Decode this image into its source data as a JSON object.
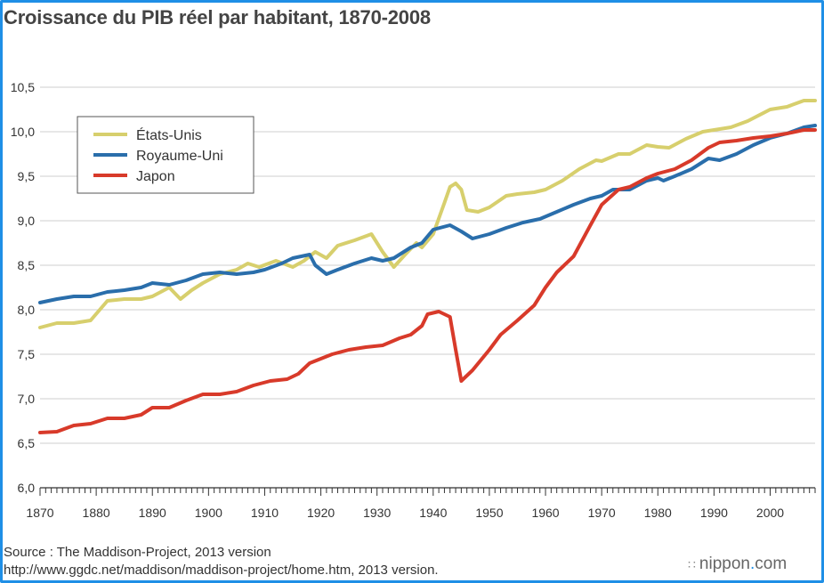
{
  "chart_data": {
    "type": "line",
    "title": "Croissance du PIB réel par habitant, 1870-2008",
    "xlim": [
      1870,
      2008
    ],
    "ylim": [
      6.0,
      10.5
    ],
    "xticks": [
      1870,
      1880,
      1890,
      1900,
      1910,
      1920,
      1930,
      1940,
      1950,
      1960,
      1970,
      1980,
      1990,
      2000
    ],
    "yticks": [
      6.0,
      6.5,
      7.0,
      7.5,
      8.0,
      8.5,
      9.0,
      9.5,
      10.0,
      10.5
    ],
    "ytick_labels": [
      "6,0",
      "6,5",
      "7,0",
      "7,5",
      "8,0",
      "8,5",
      "9,0",
      "9,5",
      "10,0",
      "10,5"
    ],
    "grid": "horizontal",
    "legend_position": "top-left",
    "series": [
      {
        "name": "États-Unis",
        "color": "#d7cf6d",
        "points": [
          [
            1870,
            7.8
          ],
          [
            1873,
            7.85
          ],
          [
            1876,
            7.85
          ],
          [
            1879,
            7.88
          ],
          [
            1882,
            8.1
          ],
          [
            1885,
            8.12
          ],
          [
            1888,
            8.12
          ],
          [
            1890,
            8.15
          ],
          [
            1893,
            8.25
          ],
          [
            1895,
            8.12
          ],
          [
            1897,
            8.22
          ],
          [
            1899,
            8.3
          ],
          [
            1902,
            8.4
          ],
          [
            1905,
            8.45
          ],
          [
            1907,
            8.52
          ],
          [
            1909,
            8.48
          ],
          [
            1912,
            8.55
          ],
          [
            1915,
            8.48
          ],
          [
            1917,
            8.55
          ],
          [
            1919,
            8.65
          ],
          [
            1921,
            8.58
          ],
          [
            1923,
            8.72
          ],
          [
            1926,
            8.78
          ],
          [
            1929,
            8.85
          ],
          [
            1931,
            8.65
          ],
          [
            1933,
            8.48
          ],
          [
            1935,
            8.62
          ],
          [
            1937,
            8.75
          ],
          [
            1938,
            8.7
          ],
          [
            1940,
            8.85
          ],
          [
            1942,
            9.2
          ],
          [
            1943,
            9.38
          ],
          [
            1944,
            9.42
          ],
          [
            1945,
            9.35
          ],
          [
            1946,
            9.12
          ],
          [
            1948,
            9.1
          ],
          [
            1950,
            9.15
          ],
          [
            1953,
            9.28
          ],
          [
            1955,
            9.3
          ],
          [
            1958,
            9.32
          ],
          [
            1960,
            9.35
          ],
          [
            1963,
            9.45
          ],
          [
            1966,
            9.58
          ],
          [
            1969,
            9.68
          ],
          [
            1970,
            9.67
          ],
          [
            1973,
            9.75
          ],
          [
            1975,
            9.75
          ],
          [
            1978,
            9.85
          ],
          [
            1980,
            9.83
          ],
          [
            1982,
            9.82
          ],
          [
            1985,
            9.92
          ],
          [
            1988,
            10.0
          ],
          [
            1990,
            10.02
          ],
          [
            1993,
            10.05
          ],
          [
            1996,
            10.12
          ],
          [
            2000,
            10.25
          ],
          [
            2003,
            10.28
          ],
          [
            2006,
            10.35
          ],
          [
            2008,
            10.35
          ]
        ]
      },
      {
        "name": "Royaume-Uni",
        "color": "#2a6eab",
        "points": [
          [
            1870,
            8.08
          ],
          [
            1873,
            8.12
          ],
          [
            1876,
            8.15
          ],
          [
            1879,
            8.15
          ],
          [
            1882,
            8.2
          ],
          [
            1885,
            8.22
          ],
          [
            1888,
            8.25
          ],
          [
            1890,
            8.3
          ],
          [
            1893,
            8.28
          ],
          [
            1896,
            8.33
          ],
          [
            1899,
            8.4
          ],
          [
            1902,
            8.42
          ],
          [
            1905,
            8.4
          ],
          [
            1908,
            8.42
          ],
          [
            1910,
            8.45
          ],
          [
            1913,
            8.52
          ],
          [
            1915,
            8.58
          ],
          [
            1918,
            8.62
          ],
          [
            1919,
            8.5
          ],
          [
            1921,
            8.4
          ],
          [
            1923,
            8.45
          ],
          [
            1926,
            8.52
          ],
          [
            1929,
            8.58
          ],
          [
            1931,
            8.55
          ],
          [
            1933,
            8.58
          ],
          [
            1936,
            8.7
          ],
          [
            1938,
            8.75
          ],
          [
            1940,
            8.9
          ],
          [
            1943,
            8.95
          ],
          [
            1945,
            8.88
          ],
          [
            1947,
            8.8
          ],
          [
            1950,
            8.85
          ],
          [
            1953,
            8.92
          ],
          [
            1956,
            8.98
          ],
          [
            1959,
            9.02
          ],
          [
            1962,
            9.1
          ],
          [
            1965,
            9.18
          ],
          [
            1968,
            9.25
          ],
          [
            1970,
            9.28
          ],
          [
            1972,
            9.35
          ],
          [
            1975,
            9.35
          ],
          [
            1978,
            9.45
          ],
          [
            1980,
            9.48
          ],
          [
            1981,
            9.45
          ],
          [
            1983,
            9.5
          ],
          [
            1986,
            9.58
          ],
          [
            1989,
            9.7
          ],
          [
            1991,
            9.68
          ],
          [
            1994,
            9.75
          ],
          [
            1997,
            9.85
          ],
          [
            2000,
            9.93
          ],
          [
            2003,
            9.98
          ],
          [
            2006,
            10.05
          ],
          [
            2008,
            10.07
          ]
        ]
      },
      {
        "name": "Japon",
        "color": "#d83a2a",
        "points": [
          [
            1870,
            6.62
          ],
          [
            1873,
            6.63
          ],
          [
            1876,
            6.7
          ],
          [
            1879,
            6.72
          ],
          [
            1882,
            6.78
          ],
          [
            1885,
            6.78
          ],
          [
            1888,
            6.82
          ],
          [
            1890,
            6.9
          ],
          [
            1893,
            6.9
          ],
          [
            1896,
            6.98
          ],
          [
            1899,
            7.05
          ],
          [
            1902,
            7.05
          ],
          [
            1905,
            7.08
          ],
          [
            1908,
            7.15
          ],
          [
            1911,
            7.2
          ],
          [
            1914,
            7.22
          ],
          [
            1916,
            7.28
          ],
          [
            1918,
            7.4
          ],
          [
            1920,
            7.45
          ],
          [
            1922,
            7.5
          ],
          [
            1925,
            7.55
          ],
          [
            1928,
            7.58
          ],
          [
            1931,
            7.6
          ],
          [
            1934,
            7.68
          ],
          [
            1936,
            7.72
          ],
          [
            1938,
            7.82
          ],
          [
            1939,
            7.95
          ],
          [
            1941,
            7.98
          ],
          [
            1943,
            7.92
          ],
          [
            1944,
            7.55
          ],
          [
            1945,
            7.2
          ],
          [
            1947,
            7.32
          ],
          [
            1950,
            7.55
          ],
          [
            1952,
            7.72
          ],
          [
            1955,
            7.88
          ],
          [
            1958,
            8.05
          ],
          [
            1960,
            8.25
          ],
          [
            1962,
            8.42
          ],
          [
            1965,
            8.6
          ],
          [
            1968,
            8.95
          ],
          [
            1970,
            9.18
          ],
          [
            1973,
            9.35
          ],
          [
            1975,
            9.38
          ],
          [
            1978,
            9.48
          ],
          [
            1980,
            9.53
          ],
          [
            1983,
            9.58
          ],
          [
            1986,
            9.68
          ],
          [
            1989,
            9.82
          ],
          [
            1991,
            9.88
          ],
          [
            1994,
            9.9
          ],
          [
            1997,
            9.93
          ],
          [
            2000,
            9.95
          ],
          [
            2003,
            9.98
          ],
          [
            2006,
            10.02
          ],
          [
            2008,
            10.02
          ]
        ]
      }
    ]
  },
  "footer": {
    "source_line": "Source : The Maddison-Project, 2013 version",
    "url_line": "http://www.ggdc.net/maddison/maddison-project/home.htm, 2013 version.",
    "brand_name": "nippon",
    "brand_dot": ".",
    "brand_tld": "com",
    "brand_icon_glyph": "∷"
  }
}
